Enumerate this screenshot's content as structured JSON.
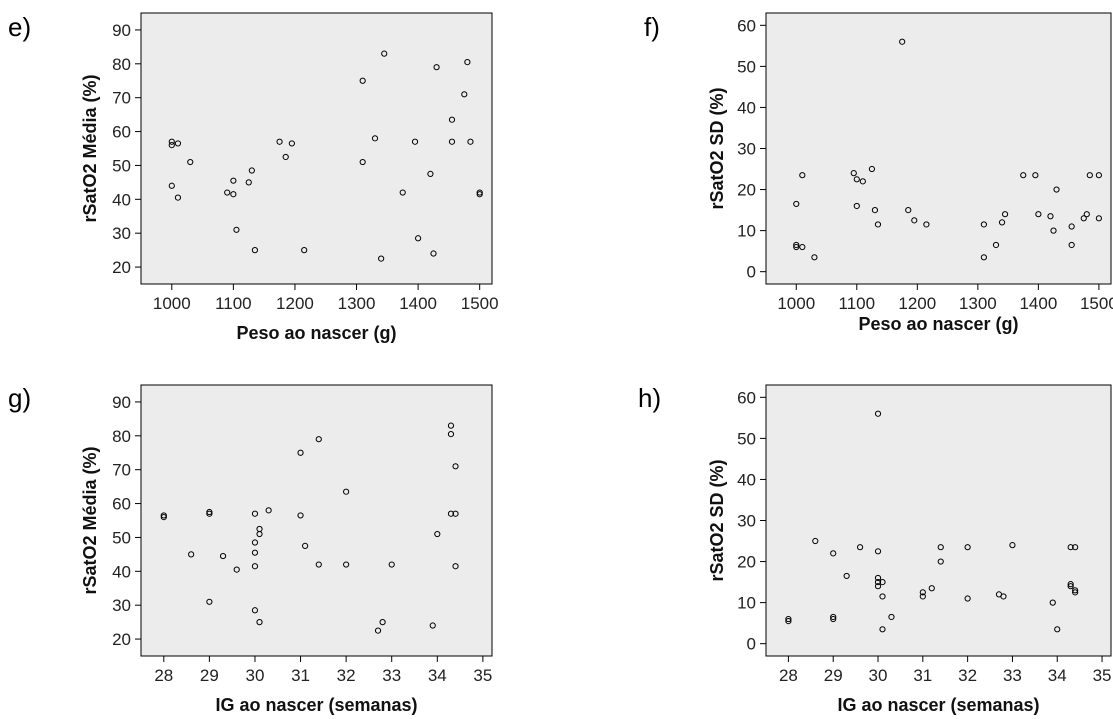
{
  "chart_data": [
    {
      "panel": "e)",
      "type": "scatter",
      "xlabel": "Peso ao nascer (g)",
      "ylabel": "rSatO2 Média (%)",
      "xlim": [
        950,
        1520
      ],
      "ylim": [
        15,
        95
      ],
      "xticks": [
        1000,
        1100,
        1200,
        1300,
        1400,
        1500
      ],
      "yticks": [
        20,
        30,
        40,
        50,
        60,
        70,
        80,
        90
      ],
      "points": [
        [
          1000,
          57
        ],
        [
          1000,
          56
        ],
        [
          1000,
          44
        ],
        [
          1010,
          56.5
        ],
        [
          1010,
          40.5
        ],
        [
          1030,
          51
        ],
        [
          1090,
          42
        ],
        [
          1100,
          45.5
        ],
        [
          1100,
          41.5
        ],
        [
          1105,
          31
        ],
        [
          1125,
          45
        ],
        [
          1130,
          48.5
        ],
        [
          1135,
          25
        ],
        [
          1175,
          57
        ],
        [
          1185,
          52.5
        ],
        [
          1195,
          56.5
        ],
        [
          1215,
          25
        ],
        [
          1310,
          75
        ],
        [
          1310,
          51
        ],
        [
          1330,
          58
        ],
        [
          1340,
          22.5
        ],
        [
          1345,
          83
        ],
        [
          1375,
          42
        ],
        [
          1395,
          57
        ],
        [
          1400,
          28.5
        ],
        [
          1420,
          47.5
        ],
        [
          1425,
          24
        ],
        [
          1430,
          79
        ],
        [
          1455,
          57
        ],
        [
          1455,
          63.5
        ],
        [
          1475,
          71
        ],
        [
          1480,
          80.5
        ],
        [
          1485,
          57
        ],
        [
          1500,
          42
        ],
        [
          1500,
          41.5
        ]
      ]
    },
    {
      "panel": "f)",
      "type": "scatter",
      "xlabel": "Peso ao nascer (g)",
      "ylabel": "rSatO2 SD (%)",
      "xlim": [
        950,
        1520
      ],
      "ylim": [
        -3,
        63
      ],
      "xticks": [
        1000,
        1100,
        1200,
        1300,
        1400,
        1500
      ],
      "yticks": [
        0,
        10,
        20,
        30,
        40,
        50,
        60
      ],
      "points": [
        [
          1000,
          16.5
        ],
        [
          1000,
          6.5
        ],
        [
          1000,
          6
        ],
        [
          1010,
          23.5
        ],
        [
          1010,
          6
        ],
        [
          1030,
          3.5
        ],
        [
          1095,
          24
        ],
        [
          1100,
          16
        ],
        [
          1100,
          22.5
        ],
        [
          1110,
          22
        ],
        [
          1125,
          25
        ],
        [
          1130,
          15
        ],
        [
          1135,
          11.5
        ],
        [
          1175,
          56
        ],
        [
          1185,
          15
        ],
        [
          1195,
          12.5
        ],
        [
          1215,
          11.5
        ],
        [
          1310,
          11.5
        ],
        [
          1310,
          3.5
        ],
        [
          1330,
          6.5
        ],
        [
          1340,
          12
        ],
        [
          1345,
          14
        ],
        [
          1375,
          23.5
        ],
        [
          1395,
          23.5
        ],
        [
          1400,
          14
        ],
        [
          1420,
          13.5
        ],
        [
          1425,
          10
        ],
        [
          1430,
          20
        ],
        [
          1455,
          6.5
        ],
        [
          1455,
          11
        ],
        [
          1475,
          13
        ],
        [
          1480,
          14
        ],
        [
          1485,
          23.5
        ],
        [
          1500,
          23.5
        ],
        [
          1500,
          13
        ]
      ]
    },
    {
      "panel": "g)",
      "type": "scatter",
      "xlabel": "IG ao nascer (semanas)",
      "ylabel": "rSatO2 Média (%)",
      "xlim": [
        27.5,
        35.2
      ],
      "ylim": [
        15,
        95
      ],
      "xticks": [
        28,
        29,
        30,
        31,
        32,
        33,
        34,
        35
      ],
      "yticks": [
        20,
        30,
        40,
        50,
        60,
        70,
        80,
        90
      ],
      "points": [
        [
          28,
          56.5
        ],
        [
          28,
          56
        ],
        [
          28.6,
          45
        ],
        [
          29,
          57.5
        ],
        [
          29,
          57
        ],
        [
          29,
          31
        ],
        [
          29.3,
          44.5
        ],
        [
          29.6,
          40.5
        ],
        [
          30,
          57
        ],
        [
          30,
          48.5
        ],
        [
          30,
          45.5
        ],
        [
          30,
          41.5
        ],
        [
          30,
          28.5
        ],
        [
          30.1,
          52.5
        ],
        [
          30.1,
          51
        ],
        [
          30.1,
          25
        ],
        [
          30.3,
          58
        ],
        [
          31,
          75
        ],
        [
          31,
          56.5
        ],
        [
          31.1,
          47.5
        ],
        [
          31.4,
          79
        ],
        [
          31.4,
          42
        ],
        [
          32,
          63.5
        ],
        [
          32,
          42
        ],
        [
          32.7,
          22.5
        ],
        [
          32.8,
          25
        ],
        [
          33,
          42
        ],
        [
          33.9,
          24
        ],
        [
          34,
          51
        ],
        [
          34.3,
          83
        ],
        [
          34.3,
          80.5
        ],
        [
          34.3,
          57
        ],
        [
          34.4,
          71
        ],
        [
          34.4,
          57
        ],
        [
          34.4,
          41.5
        ]
      ]
    },
    {
      "panel": "h)",
      "type": "scatter",
      "xlabel": "IG ao nascer (semanas)",
      "ylabel": "rSatO2 SD (%)",
      "xlim": [
        27.5,
        35.2
      ],
      "ylim": [
        -3,
        63
      ],
      "xticks": [
        28,
        29,
        30,
        31,
        32,
        33,
        34,
        35
      ],
      "yticks": [
        0,
        10,
        20,
        30,
        40,
        50,
        60
      ],
      "points": [
        [
          28,
          6
        ],
        [
          28,
          5.5
        ],
        [
          28.6,
          25
        ],
        [
          29,
          22
        ],
        [
          29,
          6.5
        ],
        [
          29,
          6
        ],
        [
          29.3,
          16.5
        ],
        [
          29.6,
          23.5
        ],
        [
          30,
          56
        ],
        [
          30,
          22.5
        ],
        [
          30,
          16
        ],
        [
          30,
          15
        ],
        [
          30,
          14
        ],
        [
          30.1,
          11.5
        ],
        [
          30.1,
          3.5
        ],
        [
          30.1,
          15
        ],
        [
          30.3,
          6.5
        ],
        [
          31,
          12.5
        ],
        [
          31,
          11.5
        ],
        [
          31.2,
          13.5
        ],
        [
          31.4,
          23.5
        ],
        [
          31.4,
          20
        ],
        [
          32,
          23.5
        ],
        [
          32,
          11
        ],
        [
          32.7,
          12
        ],
        [
          32.8,
          11.5
        ],
        [
          33,
          24
        ],
        [
          33.9,
          10
        ],
        [
          34,
          3.5
        ],
        [
          34.3,
          23.5
        ],
        [
          34.3,
          14.5
        ],
        [
          34.3,
          14
        ],
        [
          34.4,
          23.5
        ],
        [
          34.4,
          13
        ],
        [
          34.4,
          12.5
        ]
      ]
    }
  ]
}
